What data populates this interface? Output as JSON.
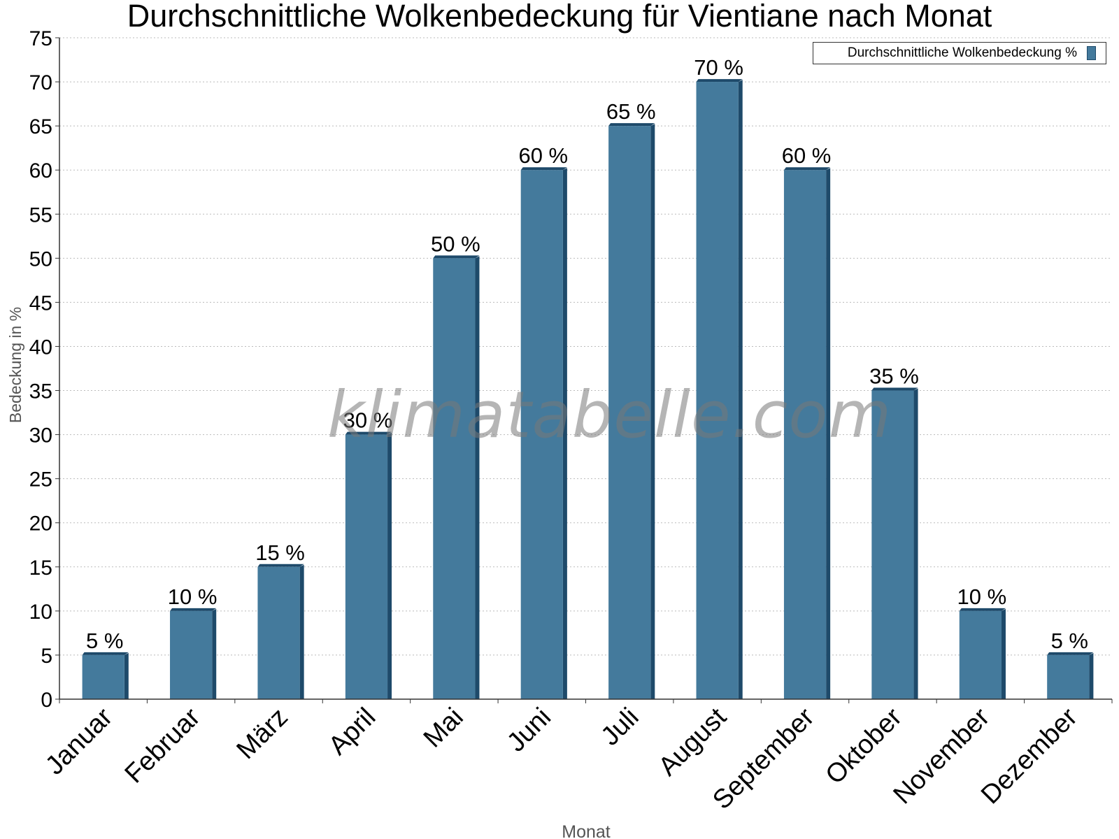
{
  "chart_data": {
    "type": "bar",
    "title": "Durchschnittliche Wolkenbedeckung für Vientiane nach Monat",
    "xlabel": "Monat",
    "ylabel": "Bedeckung in %",
    "ylim": [
      0,
      75
    ],
    "yticks": [
      "0",
      "5",
      "10",
      "15",
      "20",
      "25",
      "30",
      "35",
      "40",
      "45",
      "50",
      "55",
      "60",
      "65",
      "70",
      "75"
    ],
    "categories": [
      "Januar",
      "Februar",
      "März",
      "April",
      "Mai",
      "Juni",
      "Juli",
      "August",
      "September",
      "Oktober",
      "November",
      "Dezember"
    ],
    "series": [
      {
        "name": "Durchschnittliche Wolkenbedeckung %",
        "values": [
          5,
          10,
          15,
          30,
          50,
          60,
          65,
          70,
          60,
          35,
          10,
          5
        ],
        "labels": [
          "5 %",
          "10 %",
          "15 %",
          "30 %",
          "50 %",
          "60 %",
          "65 %",
          "70 %",
          "60 %",
          "35 %",
          "10 %",
          "5 %"
        ],
        "color": "#447a9c",
        "edge_color": "#1e4a6a"
      }
    ],
    "grid": true,
    "legend_position": "top-right",
    "watermark": "klimatabelle.com"
  }
}
